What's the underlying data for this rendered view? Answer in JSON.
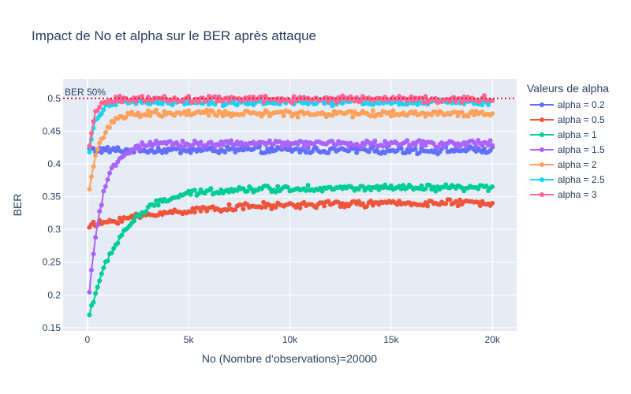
{
  "chart_data": {
    "type": "line",
    "title": "Impact de No et alpha sur le BER après attaque",
    "xlabel": "No (Nombre d‘observations)=20000",
    "ylabel": "BER",
    "xlim": [
      -1200,
      21200
    ],
    "ylim": [
      0.145,
      0.53
    ],
    "x_ticks": [
      0,
      5000,
      10000,
      15000,
      20000
    ],
    "x_tick_labels": [
      "0",
      "5k",
      "10k",
      "15k",
      "20k"
    ],
    "y_ticks": [
      0.15,
      0.2,
      0.25,
      0.3,
      0.35,
      0.4,
      0.45,
      0.5
    ],
    "y_tick_labels": [
      "0.15",
      "0.2",
      "0.25",
      "0.3",
      "0.35",
      "0.4",
      "0.45",
      "0.5"
    ],
    "grid": true,
    "legend_title": "Valeurs de alpha",
    "legend_position": "right",
    "reference_line": {
      "y": 0.5,
      "label": "BER 50%",
      "color": "#e8112d",
      "style": "dotted"
    },
    "x_start": 100,
    "x_step": 100,
    "series": [
      {
        "name": "alpha = 0.2",
        "color": "#636efa",
        "plateau": 0.421,
        "start": 0.423,
        "rise": 300,
        "drift": 0.001,
        "noise": 0.004
      },
      {
        "name": "alpha = 0.5",
        "color": "#ef553b",
        "plateau": 0.341,
        "start": 0.305,
        "rise": 4500,
        "drift": 0.0,
        "noise": 0.004
      },
      {
        "name": "alpha = 1",
        "color": "#00cc96",
        "plateau": 0.363,
        "start": 0.17,
        "rise": 1600,
        "drift": 0.0,
        "noise": 0.004
      },
      {
        "name": "alpha = 1.5",
        "color": "#ab63fa",
        "plateau": 0.431,
        "start": 0.203,
        "rise": 650,
        "drift": 0.0,
        "noise": 0.004
      },
      {
        "name": "alpha = 2",
        "color": "#ffa15a",
        "plateau": 0.477,
        "start": 0.363,
        "rise": 550,
        "drift": 0.0,
        "noise": 0.004
      },
      {
        "name": "alpha = 2.5",
        "color": "#19d3f3",
        "plateau": 0.494,
        "start": 0.418,
        "rise": 320,
        "drift": 0.0,
        "noise": 0.004
      },
      {
        "name": "alpha = 3",
        "color": "#ff6692",
        "plateau": 0.499,
        "start": 0.422,
        "rise": 250,
        "drift": 0.0,
        "noise": 0.004
      }
    ]
  }
}
